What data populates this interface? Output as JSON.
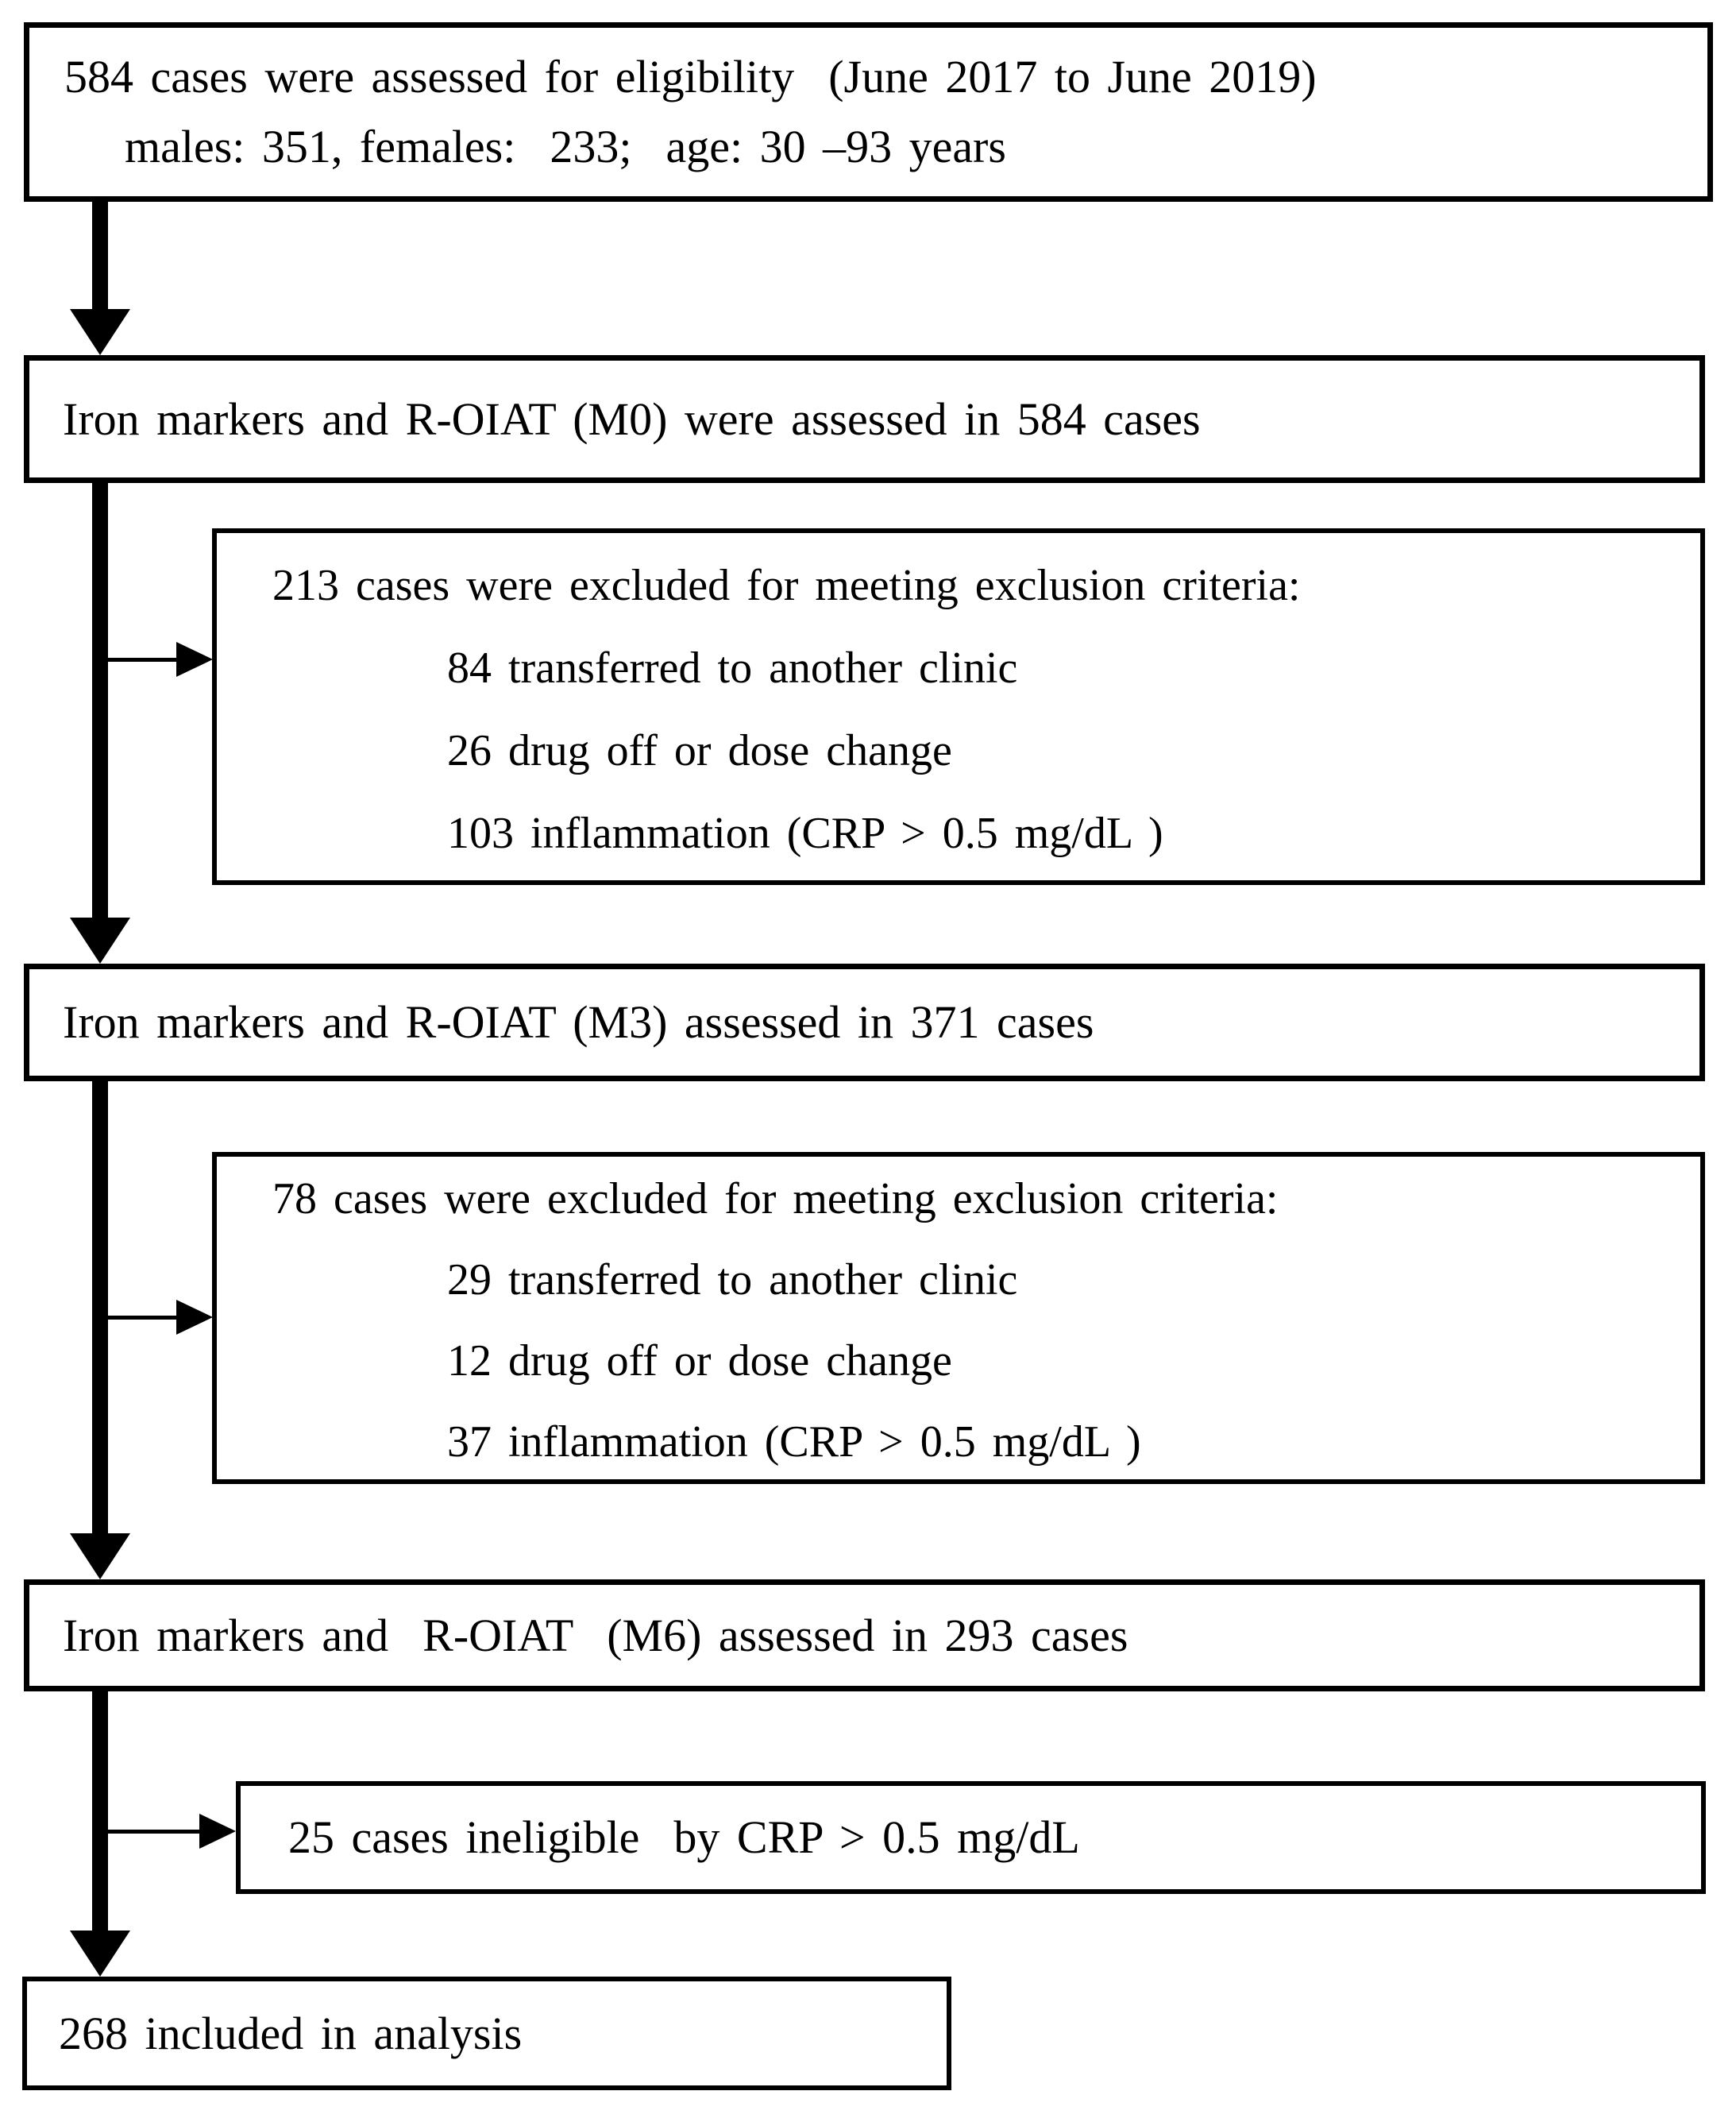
{
  "boxes": {
    "eligibility": {
      "line1": "584 cases were assessed for eligibility  (June 2017 to June 2019)",
      "line2": "males: 351, females:  233;  age: 30 –93 years"
    },
    "m0": {
      "text": "Iron markers and R-OIAT (M0) were assessed in 584 cases"
    },
    "excl1": {
      "title": "213 cases were excluded for meeting exclusion criteria:",
      "items": [
        "84 transferred to another clinic",
        "26 drug off or dose change",
        "103 inflammation (CRP > 0.5 mg/dL )"
      ]
    },
    "m3": {
      "text": "Iron markers and R-OIAT (M3) assessed in 371 cases"
    },
    "excl2": {
      "title": "78 cases were excluded for meeting exclusion criteria:",
      "items": [
        "29 transferred to another clinic",
        "12 drug off or dose change",
        "37 inflammation (CRP > 0.5 mg/dL )"
      ]
    },
    "m6": {
      "text": "Iron markers and  R-OIAT  (M6) assessed in 293 cases"
    },
    "excl3": {
      "text": "25 cases ineligible  by CRP > 0.5 mg/dL"
    },
    "final": {
      "text": "268 included in analysis"
    }
  },
  "colors": {
    "border": "#000000",
    "background": "#ffffff",
    "text": "#000000"
  }
}
